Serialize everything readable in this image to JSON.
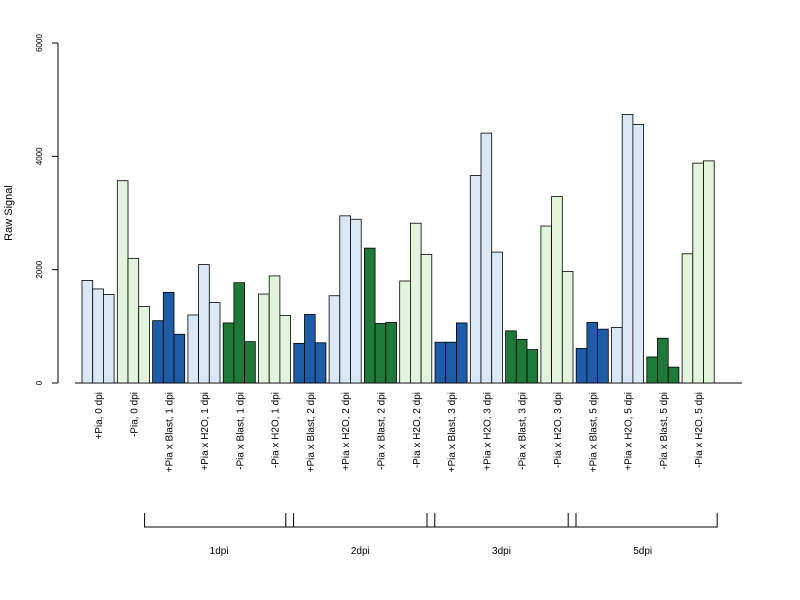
{
  "chart_data": {
    "type": "bar",
    "ylabel": "Raw Signal",
    "ylim": [
      0,
      6000
    ],
    "yticks": [
      "0",
      "2000",
      "4000",
      "6000"
    ],
    "grid": false,
    "categories": [
      "+Pia, 0 dpi",
      "-Pia, 0 dpi",
      "+Pia x Blast, 1 dpi",
      "+Pia x H2O, 1 dpi",
      "-Pia x Blast, 1 dpi",
      "-Pia x H2O, 1 dpi",
      "+Pia x Blast, 2 dpi",
      "+Pia x H2O, 2 dpi",
      "-Pia x Blast, 2 dpi",
      "-Pia x H2O, 2 dpi",
      "+Pia x Blast, 3 dpi",
      "+Pia x H2O, 3 dpi",
      "-Pia x Blast, 3 dpi",
      "-Pia x H2O, 3 dpi",
      "+Pia x Blast, 5 dpi",
      "+Pia x H2O, 5 dpi",
      "-Pia x Blast, 5 dpi",
      "-Pia x H2O, 5 dpi"
    ],
    "values": [
      [
        1810,
        1660,
        1560
      ],
      [
        3570,
        2200,
        1350
      ],
      [
        1100,
        1600,
        860
      ],
      [
        1200,
        2090,
        1420
      ],
      [
        1060,
        1770,
        730
      ],
      [
        1570,
        1890,
        1190
      ],
      [
        700,
        1210,
        710
      ],
      [
        1540,
        2950,
        2890
      ],
      [
        2380,
        1050,
        1070
      ],
      [
        1800,
        2820,
        2270
      ],
      [
        720,
        720,
        1060
      ],
      [
        3660,
        4410,
        2310
      ],
      [
        920,
        770,
        590
      ],
      [
        2770,
        3290,
        1970
      ],
      [
        610,
        1070,
        950
      ],
      [
        980,
        4740,
        4560
      ],
      [
        460,
        790,
        280
      ],
      [
        2280,
        3880,
        3920
      ]
    ],
    "group_colors": [
      "#dae8f5",
      "#e3f4dc",
      "#1f5ca8",
      "#dae8f5",
      "#1f7a3a",
      "#e3f4dc",
      "#1f5ca8",
      "#dae8f5",
      "#1f7a3a",
      "#e3f4dc",
      "#1f5ca8",
      "#dae8f5",
      "#1f7a3a",
      "#e3f4dc",
      "#1f5ca8",
      "#dae8f5",
      "#1f7a3a",
      "#e3f4dc"
    ],
    "timepoint_groups": [
      {
        "label": "1dpi",
        "from": 2,
        "to": 5
      },
      {
        "label": "2dpi",
        "from": 6,
        "to": 9
      },
      {
        "label": "3dpi",
        "from": 10,
        "to": 13
      },
      {
        "label": "5dpi",
        "from": 14,
        "to": 17
      }
    ]
  }
}
